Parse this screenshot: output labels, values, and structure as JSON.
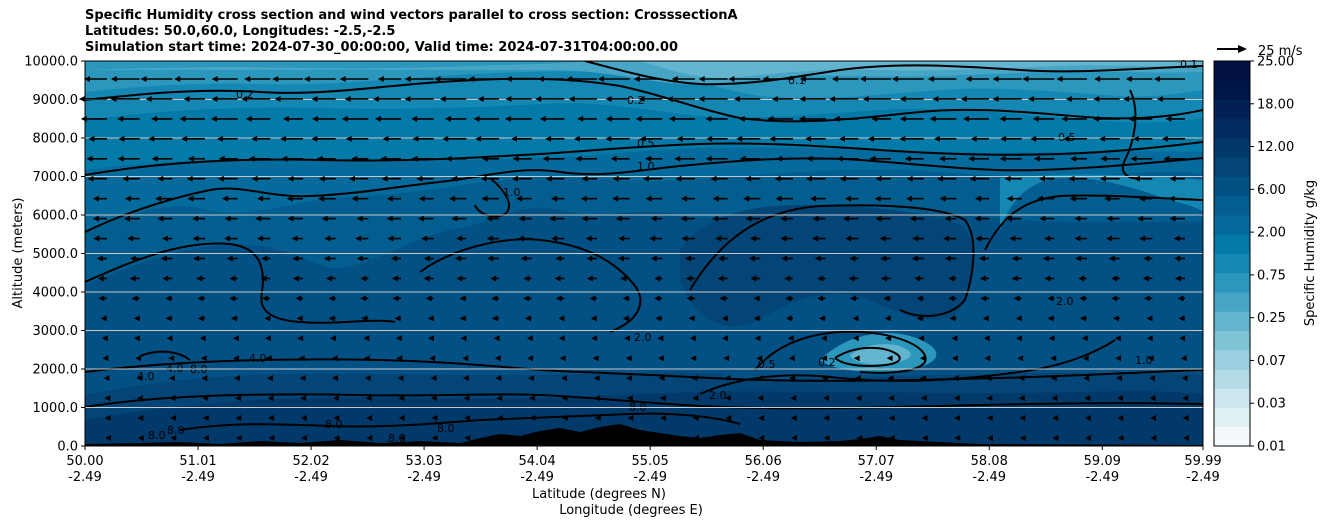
{
  "chart_data": {
    "type": "contour",
    "title_lines": [
      "Specific Humidity cross section and wind vectors parallel to cross section: CrosssectionA",
      "Latitudes: 50.0,60.0, Longitudes: -2.5,-2.5",
      "Simulation start time: 2024-07-30_00:00:00, Valid time: 2024-07-31T04:00:00.00"
    ],
    "ylabel": "Altitude (meters)",
    "xlabel_lat": "Latitude (degrees N)",
    "xlabel_lon": "Longitude (degrees E)",
    "ylim": [
      0,
      10000
    ],
    "y_ticks": [
      "0.0",
      "1000.0",
      "2000.0",
      "3000.0",
      "4000.0",
      "5000.0",
      "6000.0",
      "7000.0",
      "8000.0",
      "9000.0",
      "10000.0"
    ],
    "x_ticks_lat": [
      "50.00",
      "51.01",
      "52.02",
      "53.03",
      "54.04",
      "55.05",
      "56.06",
      "57.07",
      "58.08",
      "59.09",
      "59.99"
    ],
    "x_ticks_lon": [
      "-2.49",
      "-2.49",
      "-2.49",
      "-2.49",
      "-2.49",
      "-2.49",
      "-2.49",
      "-2.49",
      "-2.49",
      "-2.49",
      "-2.49"
    ],
    "colorbar": {
      "label": "Specific Humidity g/kg",
      "tick_labels": [
        "0.01",
        "0.03",
        "0.07",
        "0.25",
        "0.75",
        "2.00",
        "6.00",
        "12.00",
        "18.00",
        "25.00"
      ],
      "colors": [
        "#f4fafb",
        "#e1f0f3",
        "#cbe6ec",
        "#b3dbe5",
        "#9acfdf",
        "#7fc3d7",
        "#63b5cf",
        "#47a6c6",
        "#2c97bd",
        "#1488b3",
        "#047aa8",
        "#046b9c",
        "#035e90",
        "#035184",
        "#034577",
        "#02396b",
        "#022c5f",
        "#022053",
        "#011648",
        "#01103e"
      ]
    },
    "quiver_key": {
      "label": "25 m/s"
    },
    "contour_labels": [
      "0.1",
      "0.2",
      "0.5",
      "1.0",
      "2.0",
      "4.0",
      "8.0"
    ],
    "grid": "horizontal"
  }
}
